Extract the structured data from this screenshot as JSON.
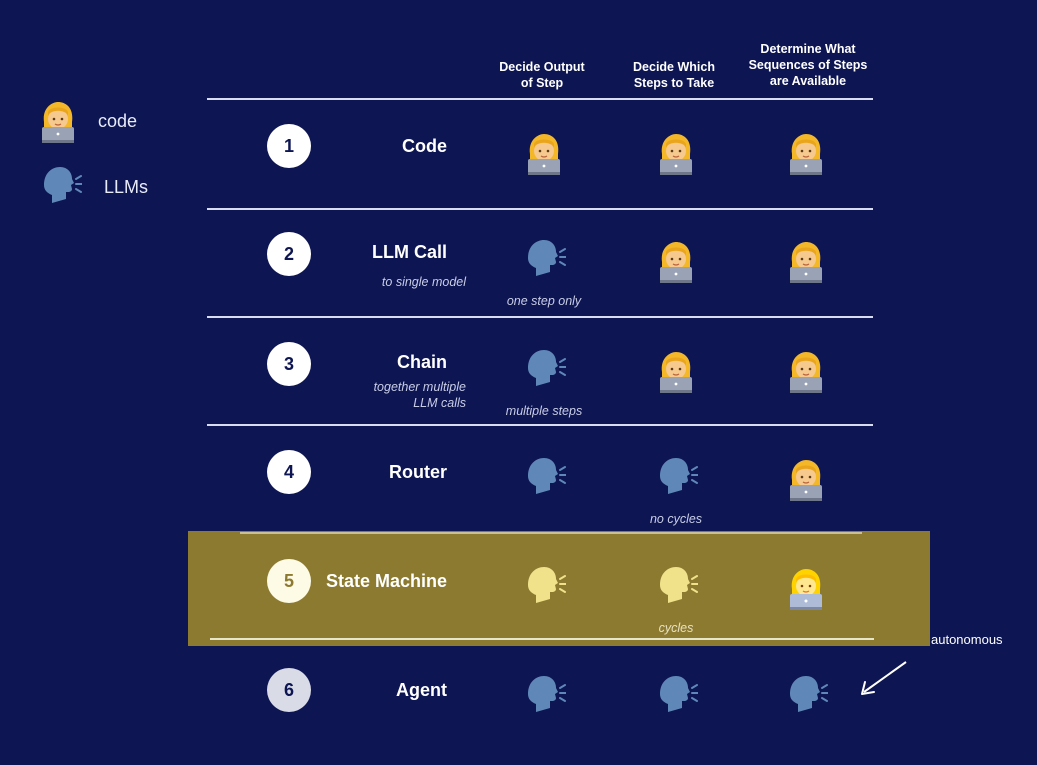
{
  "legend": [
    {
      "icon": "coder-icon",
      "label": "code"
    },
    {
      "icon": "speaking-head-icon",
      "label": "LLMs"
    }
  ],
  "headers": [
    "Decide Output\nof Step",
    "Decide Which\nSteps to Take",
    "Determine What\nSequences of Steps\nare Available"
  ],
  "rows": [
    {
      "num": "1",
      "title": "Code",
      "subtitle": "",
      "cells": [
        "code",
        "code",
        "code"
      ],
      "notes": [
        "",
        "",
        ""
      ]
    },
    {
      "num": "2",
      "title": "LLM Call",
      "subtitle": "to single model",
      "cells": [
        "llm",
        "code",
        "code"
      ],
      "notes": [
        "one step only",
        "",
        ""
      ]
    },
    {
      "num": "3",
      "title": "Chain",
      "subtitle": "together multiple\nLLM calls",
      "cells": [
        "llm",
        "code",
        "code"
      ],
      "notes": [
        "multiple steps",
        "",
        ""
      ]
    },
    {
      "num": "4",
      "title": "Router",
      "subtitle": "",
      "cells": [
        "llm",
        "llm",
        "code"
      ],
      "notes": [
        "",
        "no cycles",
        ""
      ]
    },
    {
      "num": "5",
      "title": "State Machine",
      "subtitle": "",
      "cells": [
        "llm",
        "llm",
        "code"
      ],
      "notes": [
        "",
        "cycles",
        ""
      ],
      "highlighted": true
    },
    {
      "num": "6",
      "title": "Agent",
      "subtitle": "",
      "cells": [
        "llm",
        "llm",
        "llm"
      ],
      "notes": [
        "",
        "",
        ""
      ]
    }
  ],
  "annotation": {
    "label": "autonomous",
    "icon": "arrow-down-left-icon"
  },
  "colors": {
    "background": "#0d1552",
    "highlight": "#8c7a30",
    "rule": "#d8dcf0"
  }
}
